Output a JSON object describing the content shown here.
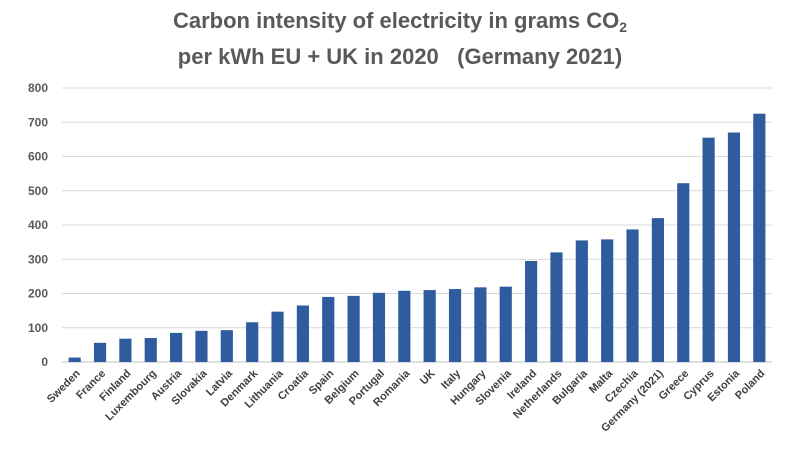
{
  "chart_data": {
    "type": "bar",
    "title_line1_main": "Carbon intensity of electricity in grams CO",
    "title_line1_sub": "2",
    "title_line2": "per kWh EU + UK in 2020   (Germany 2021)",
    "xlabel": "",
    "ylabel": "",
    "ylim": [
      0,
      800
    ],
    "yticks": [
      0,
      100,
      200,
      300,
      400,
      500,
      600,
      700,
      800
    ],
    "grid": true,
    "bar_color": "#2E5C9E",
    "categories": [
      "Sweden",
      "France",
      "Finland",
      "Luxembourg",
      "Austria",
      "Slovakia",
      "Latvia",
      "Denmark",
      "Lithuania",
      "Croatia",
      "Spain",
      "Belgium",
      "Portugal",
      "Romania",
      "UK",
      "Italy",
      "Hungary",
      "Slovenia",
      "Ireland",
      "Netherlands",
      "Bulgaria",
      "Malta",
      "Czechia",
      "Germany (2021)",
      "Greece",
      "Cyprus",
      "Estonia",
      "Poland"
    ],
    "values": [
      13,
      56,
      68,
      70,
      85,
      91,
      93,
      116,
      147,
      165,
      190,
      193,
      202,
      208,
      210,
      213,
      218,
      220,
      295,
      320,
      355,
      358,
      387,
      420,
      522,
      655,
      670,
      725
    ]
  }
}
